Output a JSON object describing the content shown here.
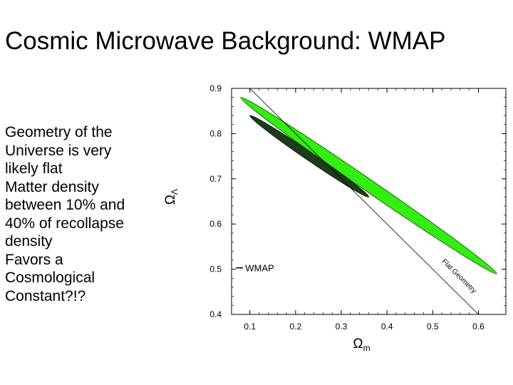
{
  "slide": {
    "title": "Cosmic Microwave Background: WMAP",
    "bullets": [
      "Geometry of the",
      "Universe is very",
      "likely flat",
      "Matter density",
      "between 10% and",
      "40% of recollapse",
      "density",
      "Favors a",
      "Cosmological",
      "Constant?!?"
    ]
  },
  "chart_data": {
    "type": "contour",
    "title": "",
    "xlabel_symbol": "Ω",
    "xlabel_sub": "m",
    "ylabel_symbol": "Ω",
    "ylabel_sub": "Λ",
    "xlim": [
      0.06,
      0.66
    ],
    "ylim": [
      0.4,
      0.9
    ],
    "x_ticks": [
      0.1,
      0.2,
      0.3,
      0.4,
      0.5,
      0.6
    ],
    "x_tick_labels": [
      "0.1",
      "0.2",
      "0.3",
      "0.4",
      "0.5",
      "0.6"
    ],
    "y_ticks": [
      0.4,
      0.5,
      0.6,
      0.7,
      0.8,
      0.9
    ],
    "y_tick_labels": [
      "0.4",
      "0.5",
      "0.6",
      "0.7",
      "0.8",
      "0.9"
    ],
    "legend": {
      "label": "WMAP",
      "placement": "center-left"
    },
    "line": {
      "label": "Flat Geometry",
      "points": [
        [
          0.1,
          0.9
        ],
        [
          0.6,
          0.4
        ]
      ]
    },
    "outer_contour": {
      "color": "#33ee11",
      "outline": "#1a6b10",
      "points": [
        [
          0.08,
          0.88
        ],
        [
          0.64,
          0.49
        ]
      ],
      "half_width_omega_lambda": 0.016
    },
    "inner_contour": {
      "color": "#1d3d1a",
      "outline": "#0b1a0a",
      "points": [
        [
          0.1,
          0.84
        ],
        [
          0.36,
          0.66
        ]
      ],
      "half_width_omega_lambda": 0.011
    }
  }
}
